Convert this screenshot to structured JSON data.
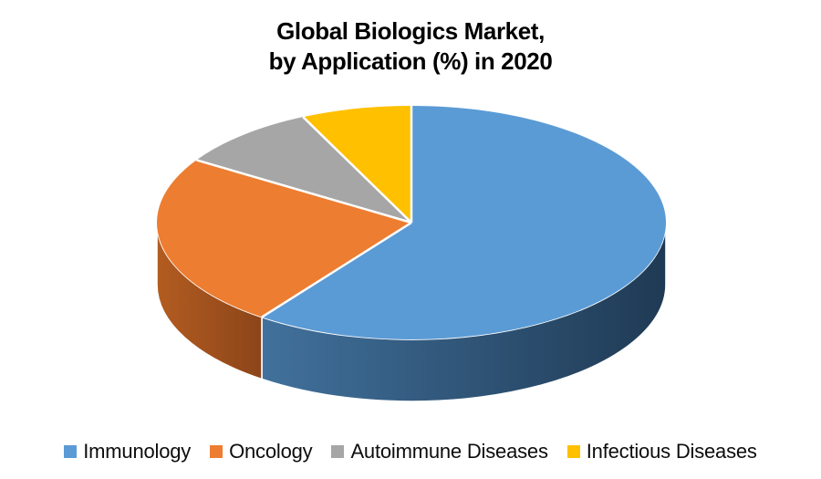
{
  "title": {
    "line1": "Global Biologics Market,",
    "line2": "by Application (%) in 2020"
  },
  "chart_data": {
    "type": "pie",
    "style": "3d",
    "title": "Global Biologics Market, by Application (%) in 2020",
    "categories": [
      "Immunology",
      "Oncology",
      "Autoimmune Diseases",
      "Infectious Diseases"
    ],
    "values": [
      60,
      24,
      9,
      7
    ],
    "unit": "%",
    "start_angle_deg": 0,
    "direction": "clockwise",
    "colors": [
      "#5B9BD5",
      "#ED7D31",
      "#A6A6A6",
      "#FFC000"
    ],
    "side_colors": [
      [
        "#41719C",
        "#1F3A54"
      ],
      [
        "#B35C21",
        "#8C4519"
      ],
      null,
      null
    ],
    "separator_color": "#FFFFFF",
    "legend_position": "bottom",
    "data_labels": false,
    "background": "#FFFFFF"
  }
}
